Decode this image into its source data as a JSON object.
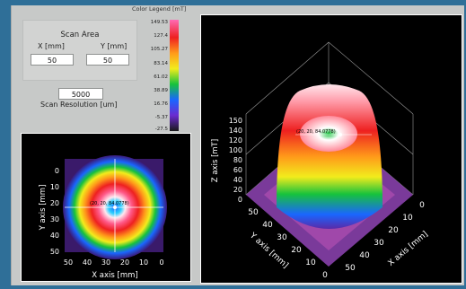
{
  "scan_area": {
    "title": "Scan Area",
    "x_label": "X [mm]",
    "y_label": "Y [mm]",
    "x_value": "50",
    "y_value": "50"
  },
  "scan_resolution": {
    "value": "5000",
    "label": "Scan Resolution [um]"
  },
  "legend": {
    "title": "Color Legend [mT]",
    "ticks": [
      "149.53",
      "127.4",
      "105.27",
      "83.14",
      "61.02",
      "38.89",
      "16.76",
      "-5.37",
      "-27.5"
    ]
  },
  "plot2d": {
    "xlabel": "X axis [mm]",
    "ylabel": "Y axis [mm]",
    "xticks": [
      "50",
      "40",
      "30",
      "20",
      "10",
      "0"
    ],
    "yticks": [
      "0",
      "10",
      "20",
      "30",
      "40",
      "50"
    ],
    "cursor_label": "(20, 20, 84.0778)"
  },
  "plot3d": {
    "xlabel": "X axis [mm]",
    "ylabel": "Y axis [mm]",
    "zlabel": "Z axis [mT]",
    "xticks": [
      "0",
      "10",
      "20",
      "30",
      "40",
      "50"
    ],
    "yticks": [
      "50",
      "40",
      "30",
      "20",
      "10",
      "0"
    ],
    "zticks": [
      "150",
      "140",
      "120",
      "100",
      "80",
      "60",
      "40",
      "20",
      "0"
    ],
    "cursor_label": "(20, 20, 84.0778)"
  },
  "colors": {
    "background": "#2f6f98",
    "panel": "#c7c9c8",
    "plot_bg": "#000000"
  }
}
